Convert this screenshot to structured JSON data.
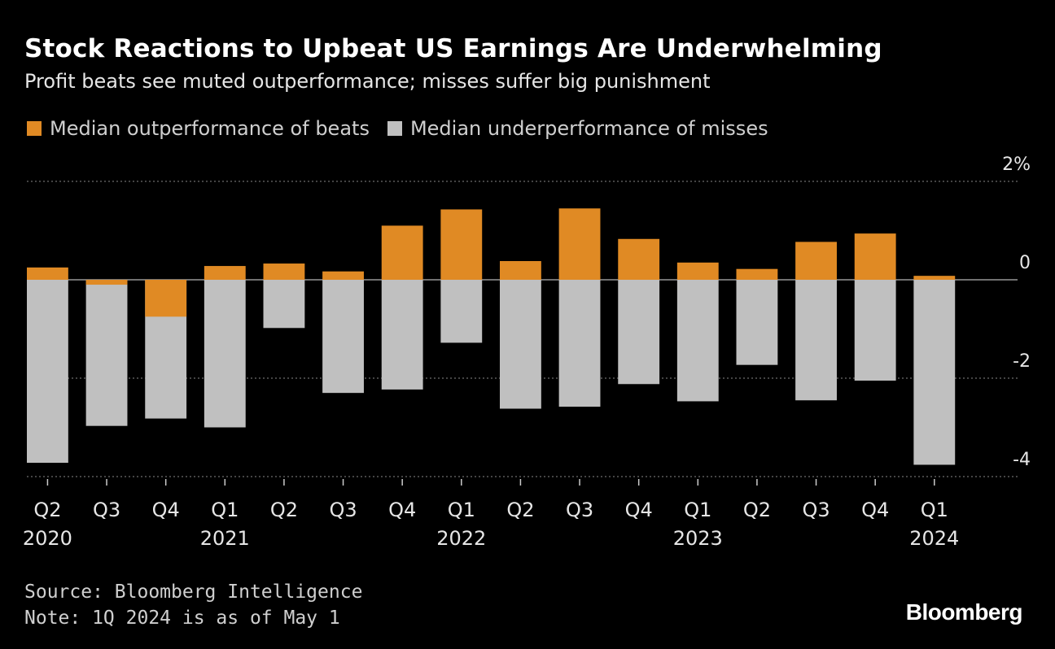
{
  "colors": {
    "background": "#000000",
    "beats": "#e08a24",
    "misses": "#c0c0c0",
    "text": "#ffffff",
    "grid": "#888888"
  },
  "legend": {
    "beats_label": "Median outperformance of beats",
    "misses_label": "Median underperformance of misses"
  },
  "footer": {
    "source": "Source: Bloomberg Intelligence",
    "note": "Note: 1Q 2024 is as of May 1"
  },
  "brand": "Bloomberg",
  "chart_data": {
    "type": "bar",
    "title": "Stock Reactions to Upbeat US Earnings Are Underwhelming",
    "subtitle": "Profit beats see muted outperformance; misses suffer big punishment",
    "categories": [
      "Q2",
      "Q3",
      "Q4",
      "Q1",
      "Q2",
      "Q3",
      "Q4",
      "Q1",
      "Q2",
      "Q3",
      "Q4",
      "Q1",
      "Q2",
      "Q3",
      "Q4",
      "Q1"
    ],
    "year_labels": [
      "2020",
      "",
      "",
      "2021",
      "",
      "",
      "",
      "2022",
      "",
      "",
      "",
      "2023",
      "",
      "",
      "",
      "2024"
    ],
    "series": [
      {
        "name": "Median outperformance of beats",
        "values": [
          0.25,
          -0.1,
          -0.75,
          0.28,
          0.33,
          0.17,
          1.1,
          1.43,
          0.38,
          1.45,
          0.83,
          0.35,
          0.22,
          0.77,
          0.94,
          0.08
        ]
      },
      {
        "name": "Median underperformance of misses",
        "values": [
          -3.72,
          -2.97,
          -2.82,
          -3.0,
          -0.98,
          -2.3,
          -2.23,
          -1.28,
          -2.62,
          -2.58,
          -2.12,
          -2.47,
          -1.73,
          -2.45,
          -2.05,
          -3.76
        ]
      }
    ],
    "yticks": [
      2,
      0,
      -2,
      -4
    ],
    "ytick_labels": [
      "2%",
      "0",
      "-2",
      "-4"
    ],
    "ylim": [
      -4.2,
      2.3
    ],
    "xlabel": "",
    "ylabel": "",
    "grid": true
  }
}
